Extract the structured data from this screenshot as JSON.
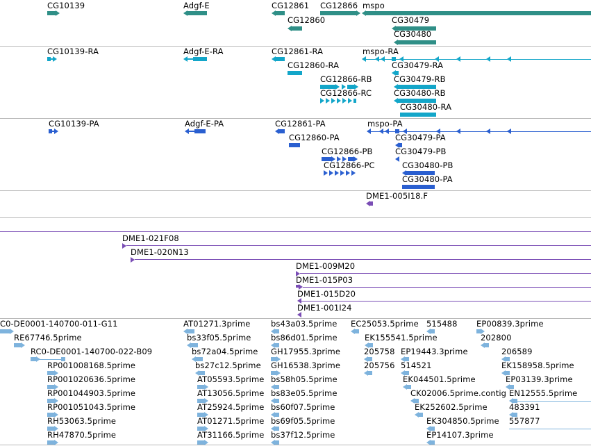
{
  "colors": {
    "gene": "#2f8f87",
    "transcript": "#13a6c9",
    "protein": "#2a5fd0",
    "clone": "#7a4db5",
    "est": "#7eb3dd",
    "separator": "#b8b8b8"
  },
  "tracks": [
    {
      "id": "gene",
      "features": [
        {
          "label": "CG10139"
        },
        {
          "label": "Adgf-E"
        },
        {
          "label": "CG12861"
        },
        {
          "label": "CG12866"
        },
        {
          "label": "mspo"
        },
        {
          "label": "CG12860"
        },
        {
          "label": "CG30479"
        },
        {
          "label": "CG30480"
        }
      ]
    },
    {
      "id": "transcript",
      "features": [
        {
          "label": "CG10139-RA"
        },
        {
          "label": "Adgf-E-RA"
        },
        {
          "label": "CG12861-RA"
        },
        {
          "label": "mspo-RA"
        },
        {
          "label": "CG12860-RA"
        },
        {
          "label": "CG30479-RA"
        },
        {
          "label": "CG12866-RB"
        },
        {
          "label": "CG30479-RB"
        },
        {
          "label": "CG12866-RC"
        },
        {
          "label": "CG30480-RB"
        },
        {
          "label": "CG30480-RA"
        }
      ]
    },
    {
      "id": "protein",
      "features": [
        {
          "label": "CG10139-PA"
        },
        {
          "label": "Adgf-E-PA"
        },
        {
          "label": "CG12861-PA"
        },
        {
          "label": "mspo-PA"
        },
        {
          "label": "CG12860-PA"
        },
        {
          "label": "CG30479-PA"
        },
        {
          "label": "CG12866-PB"
        },
        {
          "label": "CG30479-PB"
        },
        {
          "label": "CG12866-PC"
        },
        {
          "label": "CG30480-PB"
        },
        {
          "label": "CG30480-PA"
        }
      ]
    },
    {
      "id": "clone-small",
      "features": [
        {
          "label": "DME1-005I18.F"
        }
      ]
    },
    {
      "id": "clone-large",
      "features": [
        {
          "label": "DME1-021F08"
        },
        {
          "label": "DME1-020N13"
        },
        {
          "label": "DME1-009M20"
        },
        {
          "label": "DME1-015P03"
        },
        {
          "label": "DME1-015D20"
        },
        {
          "label": "DME1-001I24"
        }
      ]
    },
    {
      "id": "est",
      "features": [
        {
          "label": "C0-DE0001-140700-011-G11"
        },
        {
          "label": "RE67746.5prime"
        },
        {
          "label": "RC0-DE0001-140700-022-B09"
        },
        {
          "label": "RP001008168.5prime"
        },
        {
          "label": "RP001020636.5prime"
        },
        {
          "label": "RP001044903.5prime"
        },
        {
          "label": "RP001051043.5prime"
        },
        {
          "label": "RH53063.5prime"
        },
        {
          "label": "RH47870.5prime"
        },
        {
          "label": "AT01271.3prime"
        },
        {
          "label": "bs33f05.5prime"
        },
        {
          "label": "bs72a04.5prime"
        },
        {
          "label": "bs27c12.5prime"
        },
        {
          "label": "AT05593.5prime"
        },
        {
          "label": "AT13056.5prime"
        },
        {
          "label": "AT25924.5prime"
        },
        {
          "label": "AT01271.5prime"
        },
        {
          "label": "AT31166.5prime"
        },
        {
          "label": "bs43a03.5prime"
        },
        {
          "label": "bs86d01.5prime"
        },
        {
          "label": "GH17955.3prime"
        },
        {
          "label": "GH16538.3prime"
        },
        {
          "label": "bs58h05.5prime"
        },
        {
          "label": "bs83e05.5prime"
        },
        {
          "label": "bs60f07.5prime"
        },
        {
          "label": "bs69f05.5prime"
        },
        {
          "label": "bs37f12.5prime"
        },
        {
          "label": "EC25053.5prime"
        },
        {
          "label": "EK155541.5prime"
        },
        {
          "label": "205758"
        },
        {
          "label": "205756"
        },
        {
          "label": "515488"
        },
        {
          "label": "EP19443.3prime"
        },
        {
          "label": "514521"
        },
        {
          "label": "EK044501.5prime"
        },
        {
          "label": "CK02006.5prime.contig"
        },
        {
          "label": "EK252602.5prime"
        },
        {
          "label": "EK304850.5prime"
        },
        {
          "label": "EP14107.3prime"
        },
        {
          "label": "EP00839.3prime"
        },
        {
          "label": "202800"
        },
        {
          "label": "206589"
        },
        {
          "label": "EK158958.5prime"
        },
        {
          "label": "EP03139.3prime"
        },
        {
          "label": "EN12555.5prime"
        },
        {
          "label": "483391"
        },
        {
          "label": "557877"
        }
      ]
    }
  ]
}
